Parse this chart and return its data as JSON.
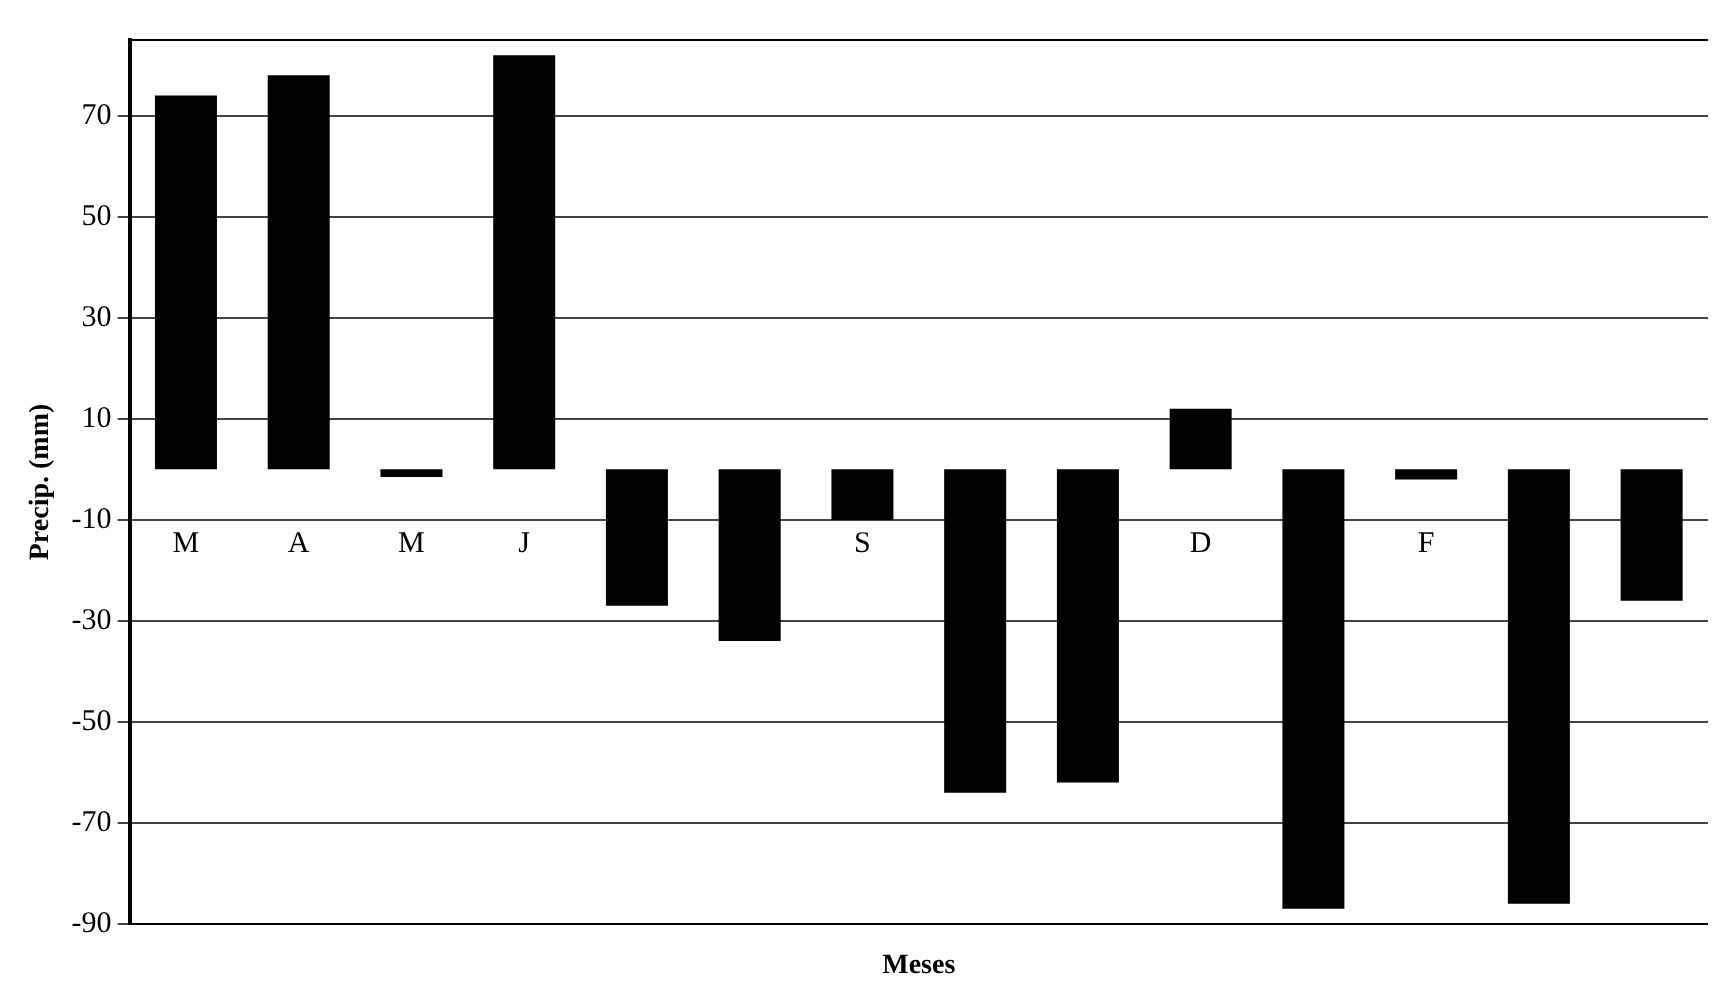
{
  "chart_data": {
    "type": "bar",
    "xlabel": "Meses",
    "ylabel": "Precip. (mm)",
    "categories": [
      "M",
      "A",
      "M",
      "J",
      null,
      null,
      "S",
      null,
      null,
      "D",
      null,
      "F",
      null,
      null
    ],
    "values": [
      74,
      78,
      -1.5,
      82,
      -27,
      -34,
      -10,
      -64,
      -62,
      12,
      -87,
      -2,
      -86,
      -26
    ],
    "color": "#000000",
    "ylim": [
      -90,
      85
    ],
    "yticks": [
      -90,
      -70,
      -50,
      -30,
      -10,
      10,
      30,
      50,
      70
    ],
    "grid": "y"
  }
}
